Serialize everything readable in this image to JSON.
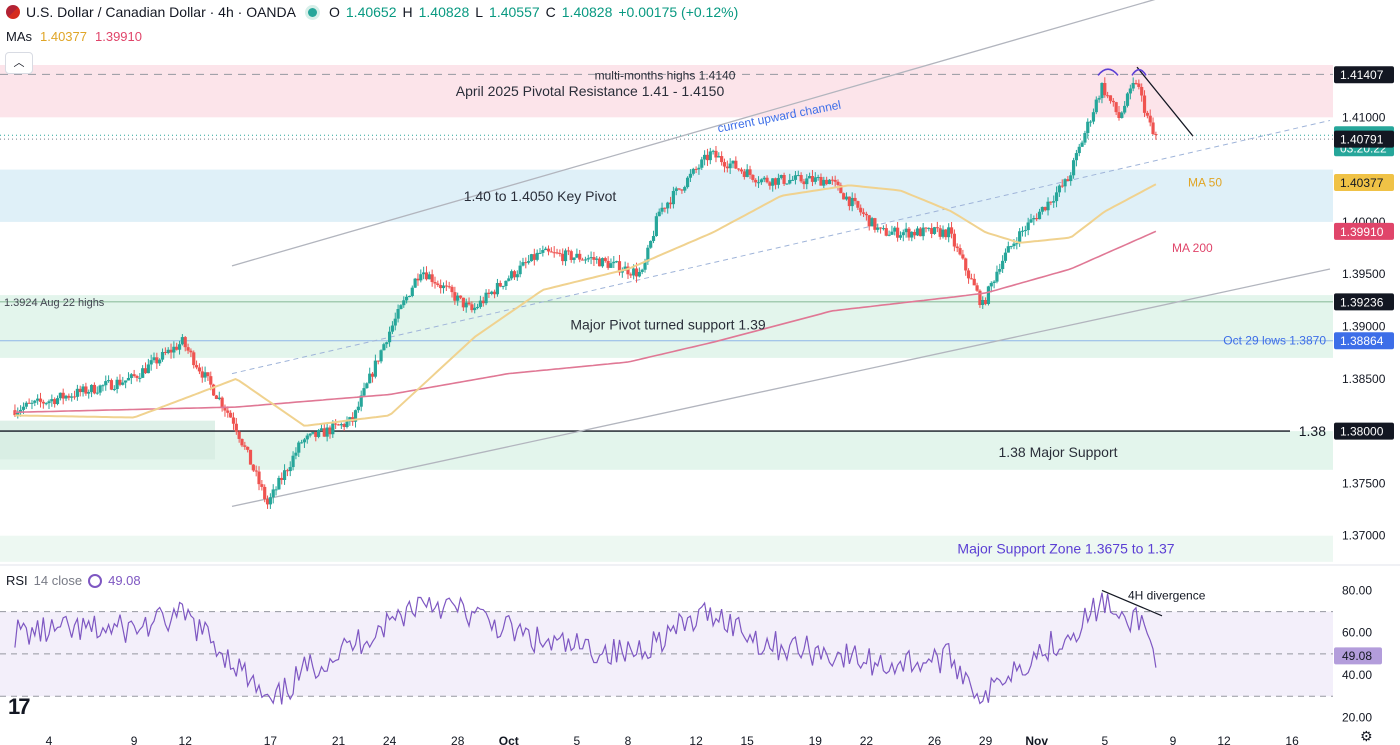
{
  "header": {
    "symbol": "U.S. Dollar / Canadian Dollar · 4h · OANDA",
    "o_label": "O",
    "o": "1.40652",
    "h_label": "H",
    "h": "1.40828",
    "l_label": "L",
    "l": "1.40557",
    "c_label": "C",
    "c": "1.40828",
    "change": "+0.00175 (+0.12%)"
  },
  "mas": {
    "label": "MAs",
    "ma50": "1.40377",
    "ma200": "1.39910"
  },
  "rsi_header": {
    "label": "RSI",
    "params": "14 close",
    "value": "49.08"
  },
  "colors": {
    "up": "#26a69a",
    "down": "#ef5350",
    "ma50": "#f0d28f",
    "ma200": "#e07895",
    "rsi": "#7e57c2",
    "resistance_zone": "#fce4ea",
    "pivot_zone": "#dff0f8",
    "support_zone": "#e3f5ec"
  },
  "chart_data": {
    "type": "candlestick",
    "symbol": "USDCAD",
    "timeframe": "4h",
    "x_ticks": [
      "4",
      "9",
      "12",
      "17",
      "21",
      "24",
      "28",
      "Oct",
      "5",
      "8",
      "12",
      "15",
      "19",
      "22",
      "26",
      "29",
      "Nov",
      "5",
      "9",
      "12",
      "16"
    ],
    "y_ticks": [
      "1.41000",
      "1.40000",
      "1.39500",
      "1.39000",
      "1.38500",
      "1.37500",
      "1.37000"
    ],
    "ylim": [
      1.3672,
      1.4172
    ],
    "price_anchors": {
      "x": [
        "Sep 2",
        "Sep 9",
        "Sep 12",
        "Sep 15",
        "Sep 17",
        "Sep 19",
        "Sep 22",
        "Sep 24",
        "Sep 26",
        "Sep 29",
        "Oct 1",
        "Oct 3",
        "Oct 6",
        "Oct 9",
        "Oct 10",
        "Oct 13",
        "Oct 16",
        "Oct 20",
        "Oct 23",
        "Oct 27",
        "Oct 29",
        "Oct 30",
        "Oct 31",
        "Nov 3",
        "Nov 5",
        "Nov 6",
        "Nov 7",
        "Nov 8"
      ],
      "y": [
        1.382,
        1.385,
        1.3885,
        1.381,
        1.373,
        1.379,
        1.381,
        1.389,
        1.3955,
        1.3915,
        1.3945,
        1.397,
        1.3965,
        1.395,
        1.401,
        1.4065,
        1.404,
        1.404,
        1.399,
        1.399,
        1.392,
        1.396,
        1.3985,
        1.404,
        1.413,
        1.41,
        1.4135,
        1.4083
      ]
    },
    "ma50_anchors": {
      "x": [
        "Sep 2",
        "Sep 9",
        "Sep 15",
        "Sep 19",
        "Sep 24",
        "Sep 29",
        "Oct 3",
        "Oct 8",
        "Oct 13",
        "Oct 17",
        "Oct 21",
        "Oct 24",
        "Oct 27",
        "Oct 29",
        "Oct 31",
        "Nov 3",
        "Nov 5",
        "Nov 8"
      ],
      "y": [
        1.3815,
        1.3813,
        1.385,
        1.3805,
        1.3815,
        1.389,
        1.3935,
        1.3955,
        1.399,
        1.4025,
        1.4035,
        1.403,
        1.401,
        1.399,
        1.398,
        1.3985,
        1.401,
        1.4036
      ]
    },
    "ma200_anchors": {
      "x": [
        "Sep 2",
        "Sep 15",
        "Sep 24",
        "Oct 1",
        "Oct 8",
        "Oct 13",
        "Oct 20",
        "Oct 27",
        "Oct 29",
        "Nov 3",
        "Nov 8"
      ],
      "y": [
        1.3818,
        1.3823,
        1.3835,
        1.3855,
        1.3866,
        1.3885,
        1.3915,
        1.3928,
        1.3932,
        1.3955,
        1.3991
      ]
    },
    "rsi": {
      "yticks": [
        "80.00",
        "60.00",
        "40.00",
        "20.00"
      ],
      "levels": [
        70,
        50,
        30
      ],
      "anchors_x": [
        "Sep 2",
        "Sep 9",
        "Sep 12",
        "Sep 15",
        "Sep 17",
        "Sep 19",
        "Sep 22",
        "Sep 24",
        "Sep 26",
        "Sep 29",
        "Oct 3",
        "Oct 8",
        "Oct 10",
        "Oct 13",
        "Oct 16",
        "Oct 20",
        "Oct 23",
        "Oct 27",
        "Oct 29",
        "Oct 30",
        "Nov 3",
        "Nov 5",
        "Nov 6",
        "Nov 7",
        "Nov 8"
      ],
      "anchors_y": [
        60,
        62,
        68,
        45,
        25,
        42,
        55,
        65,
        76,
        68,
        55,
        50,
        58,
        70,
        55,
        50,
        45,
        48,
        28,
        40,
        60,
        75,
        63,
        68,
        49
      ]
    },
    "price_labels": [
      {
        "text": "1.41407",
        "value": 1.41407,
        "bg": "#131722",
        "color": "#ffffff"
      },
      {
        "text": "1.40828",
        "value": 1.40828,
        "sub": "03:20:22",
        "bg": "#26a69a",
        "color": "#ffffff"
      },
      {
        "text": "1.40791",
        "value": 1.40791,
        "bg": "#131722",
        "color": "#ffffff"
      },
      {
        "text": "1.40377",
        "value": 1.40377,
        "bg": "#f0c246",
        "color": "#131722"
      },
      {
        "text": "1.39910",
        "value": 1.3991,
        "bg": "#e0456a",
        "color": "#ffffff"
      },
      {
        "text": "1.39236",
        "value": 1.39236,
        "bg": "#131722",
        "color": "#ffffff"
      },
      {
        "text": "1.38864",
        "value": 1.38864,
        "bg": "#3d6ee8",
        "color": "#ffffff"
      },
      {
        "text": "1.38000",
        "value": 1.38,
        "bg": "#131722",
        "color": "#ffffff"
      }
    ],
    "rsi_label": {
      "text": "49.08",
      "value": 49.08
    },
    "zones": [
      {
        "name": "resistance",
        "from": 1.41,
        "to": 1.415,
        "color": "#fce4ea"
      },
      {
        "name": "key_pivot",
        "from": 1.4,
        "to": 1.405,
        "color": "#dff0f8"
      },
      {
        "name": "major_pivot",
        "from": 1.387,
        "to": 1.393,
        "color": "#e3f5ec"
      },
      {
        "name": "support_138",
        "from": 1.3763,
        "to": 1.38,
        "color": "#e3f5ec"
      },
      {
        "name": "major_support",
        "from": 1.3675,
        "to": 1.37,
        "color": "#edf8f2"
      }
    ],
    "annotations": {
      "multi_month": "multi-months highs 1.4140",
      "resistance": "April 2025 Pivotal Resistance 1.41 - 1.4150",
      "channel": "current upward channel",
      "key_pivot": "1.40 to 1.4050 Key Pivot",
      "aug22": "1.3924 Aug 22 highs",
      "major_pivot": "Major Pivot turned support 1.39",
      "oct29": "Oct 29 lows 1.3870",
      "level138": "1.38",
      "support138": "1.38 Major Support",
      "major_support": "Major Support Zone 1.3675 to 1.37",
      "ma50": "MA 50",
      "ma200": "MA 200",
      "divergence": "4H divergence"
    }
  }
}
